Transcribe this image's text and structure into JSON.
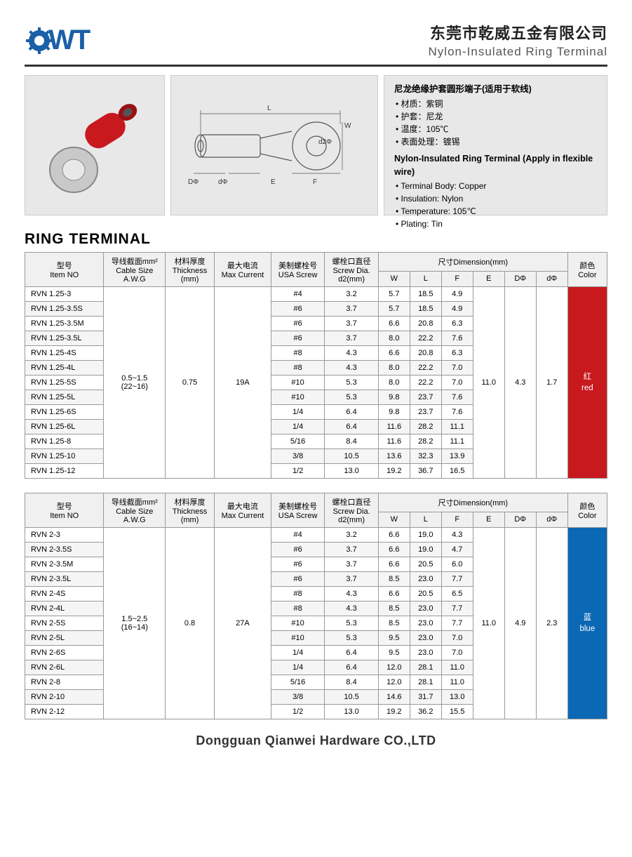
{
  "header": {
    "company_cn": "东莞市乾威五金有限公司",
    "product_en": "Nylon-Insulated Ring Terminal",
    "logo_text": "WT"
  },
  "info": {
    "title_cn": "尼龙绝缘护套圆形端子(适用于软线)",
    "bullets_cn": [
      "材质：紫铜",
      "护套：尼龙",
      "温度：105℃",
      "表面处理：镀锡"
    ],
    "title_en": "Nylon-Insulated Ring Terminal (Apply in flexible wire)",
    "bullets_en": [
      "Terminal Body: Copper",
      "Insulation: Nylon",
      "Temperature: 105℃",
      "Plating: Tin"
    ],
    "diagram_labels": [
      "L",
      "W",
      "d2Φ",
      "F",
      "E",
      "dΦ",
      "DΦ"
    ]
  },
  "section_title": "RING TERMINAL",
  "table_headers": {
    "item": [
      "型号",
      "Item NO"
    ],
    "cable": [
      "导线截面mm²",
      "Cable Size",
      "A.W.G"
    ],
    "thickness": [
      "材料厚度",
      "Thickness",
      "(mm)"
    ],
    "current": [
      "最大电流",
      "Max Current"
    ],
    "screw": [
      "美制螺栓号",
      "USA Screw"
    ],
    "dia": [
      "螺栓口直径",
      "Screw Dia.",
      "d2(mm)"
    ],
    "dim": "尺寸Dimension(mm)",
    "dims": [
      "W",
      "L",
      "F",
      "E",
      "DΦ",
      "dΦ"
    ],
    "color": [
      "颜色",
      "Color"
    ]
  },
  "table1": {
    "cable": "0.5~1.5\n(22~16)",
    "thickness": "0.75",
    "current": "19A",
    "E": "11.0",
    "DPhi": "4.3",
    "dPhi": "1.7",
    "color_label_cn": "红",
    "color_label_en": "red",
    "color_hex": "#c8191e",
    "rows": [
      {
        "item": "RVN 1.25-3",
        "screw": "#4",
        "d2": "3.2",
        "W": "5.7",
        "L": "18.5",
        "F": "4.9"
      },
      {
        "item": "RVN 1.25-3.5S",
        "screw": "#6",
        "d2": "3.7",
        "W": "5.7",
        "L": "18.5",
        "F": "4.9"
      },
      {
        "item": "RVN 1.25-3.5M",
        "screw": "#6",
        "d2": "3.7",
        "W": "6.6",
        "L": "20.8",
        "F": "6.3"
      },
      {
        "item": "RVN 1.25-3.5L",
        "screw": "#6",
        "d2": "3.7",
        "W": "8.0",
        "L": "22.2",
        "F": "7.6"
      },
      {
        "item": "RVN 1.25-4S",
        "screw": "#8",
        "d2": "4.3",
        "W": "6.6",
        "L": "20.8",
        "F": "6.3"
      },
      {
        "item": "RVN 1.25-4L",
        "screw": "#8",
        "d2": "4.3",
        "W": "8.0",
        "L": "22.2",
        "F": "7.0"
      },
      {
        "item": "RVN 1.25-5S",
        "screw": "#10",
        "d2": "5.3",
        "W": "8.0",
        "L": "22.2",
        "F": "7.0"
      },
      {
        "item": "RVN 1.25-5L",
        "screw": "#10",
        "d2": "5.3",
        "W": "9.8",
        "L": "23.7",
        "F": "7.6"
      },
      {
        "item": "RVN 1.25-6S",
        "screw": "1/4",
        "d2": "6.4",
        "W": "9.8",
        "L": "23.7",
        "F": "7.6"
      },
      {
        "item": "RVN 1.25-6L",
        "screw": "1/4",
        "d2": "6.4",
        "W": "11.6",
        "L": "28.2",
        "F": "11.1"
      },
      {
        "item": "RVN 1.25-8",
        "screw": "5/16",
        "d2": "8.4",
        "W": "11.6",
        "L": "28.2",
        "F": "11.1"
      },
      {
        "item": "RVN 1.25-10",
        "screw": "3/8",
        "d2": "10.5",
        "W": "13.6",
        "L": "32.3",
        "F": "13.9"
      },
      {
        "item": "RVN 1.25-12",
        "screw": "1/2",
        "d2": "13.0",
        "W": "19.2",
        "L": "36.7",
        "F": "16.5"
      }
    ]
  },
  "table2": {
    "cable": "1.5~2.5\n(16~14)",
    "thickness": "0.8",
    "current": "27A",
    "E": "11.0",
    "DPhi": "4.9",
    "dPhi": "2.3",
    "color_label_cn": "蓝",
    "color_label_en": "blue",
    "color_hex": "#0a68b4",
    "rows": [
      {
        "item": "RVN 2-3",
        "screw": "#4",
        "d2": "3.2",
        "W": "6.6",
        "L": "19.0",
        "F": "4.3"
      },
      {
        "item": "RVN 2-3.5S",
        "screw": "#6",
        "d2": "3.7",
        "W": "6.6",
        "L": "19.0",
        "F": "4.7"
      },
      {
        "item": "RVN 2-3.5M",
        "screw": "#6",
        "d2": "3.7",
        "W": "6.6",
        "L": "20.5",
        "F": "6.0"
      },
      {
        "item": "RVN 2-3.5L",
        "screw": "#6",
        "d2": "3.7",
        "W": "8.5",
        "L": "23.0",
        "F": "7.7"
      },
      {
        "item": "RVN 2-4S",
        "screw": "#8",
        "d2": "4.3",
        "W": "6.6",
        "L": "20.5",
        "F": "6.5"
      },
      {
        "item": "RVN 2-4L",
        "screw": "#8",
        "d2": "4.3",
        "W": "8.5",
        "L": "23.0",
        "F": "7.7"
      },
      {
        "item": "RVN 2-5S",
        "screw": "#10",
        "d2": "5.3",
        "W": "8.5",
        "L": "23.0",
        "F": "7.7"
      },
      {
        "item": "RVN 2-5L",
        "screw": "#10",
        "d2": "5.3",
        "W": "9.5",
        "L": "23.0",
        "F": "7.0"
      },
      {
        "item": "RVN 2-6S",
        "screw": "1/4",
        "d2": "6.4",
        "W": "9.5",
        "L": "23.0",
        "F": "7.0"
      },
      {
        "item": "RVN 2-6L",
        "screw": "1/4",
        "d2": "6.4",
        "W": "12.0",
        "L": "28.1",
        "F": "11.0"
      },
      {
        "item": "RVN 2-8",
        "screw": "5/16",
        "d2": "8.4",
        "W": "12.0",
        "L": "28.1",
        "F": "11.0"
      },
      {
        "item": "RVN 2-10",
        "screw": "3/8",
        "d2": "10.5",
        "W": "14.6",
        "L": "31.7",
        "F": "13.0"
      },
      {
        "item": "RVN 2-12",
        "screw": "1/2",
        "d2": "13.0",
        "W": "19.2",
        "L": "36.2",
        "F": "15.5"
      }
    ]
  },
  "footer": "Dongguan Qianwei Hardware CO.,LTD",
  "colors": {
    "logo": "#1a5fa8",
    "border": "#999",
    "header_rule": "#333"
  }
}
